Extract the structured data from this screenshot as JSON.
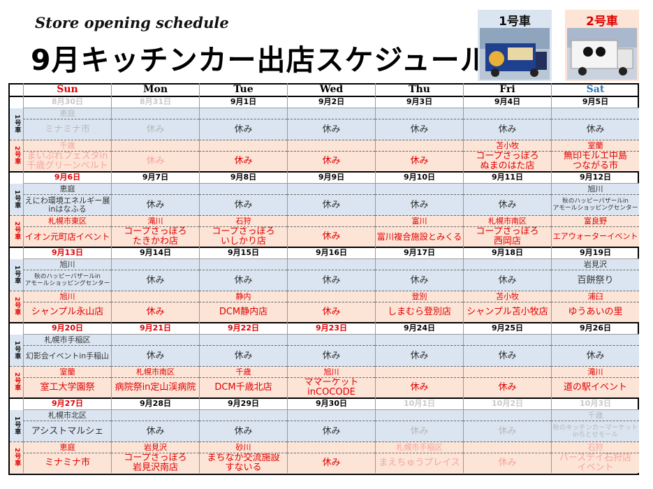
{
  "header": {
    "subtitle": "Store opening schedule",
    "title": "9月キッチンカー出店スケジュール",
    "car1_label": "1号車",
    "car2_label": "2号車"
  },
  "calendar": {
    "days": [
      "Sun",
      "Mon",
      "Tue",
      "Wed",
      "Thu",
      "Fri",
      "Sat"
    ],
    "weeks": [
      {
        "dates": [
          "8月30日",
          "8月31日",
          "9月1日",
          "9月2日",
          "9月3日",
          "9月4日",
          "9月5日"
        ],
        "car1_areas": [
          "恵庭",
          null,
          null,
          null,
          null,
          null,
          null
        ],
        "car1_events": [
          "ミナミナ市",
          "休み",
          "休み",
          "休み",
          "休み",
          "休み",
          "休み"
        ],
        "car2_areas": [
          "千歳",
          null,
          null,
          null,
          null,
          "苫小牧",
          "室蘭"
        ],
        "car2_events": [
          "まいぷれフェスタin\n千歳グリーンベルト",
          "休み",
          "休み",
          "休み",
          "休み",
          "コープさっぽろ\nぬまのはた店",
          "無印モルエ中島\nつながる市"
        ]
      },
      {
        "dates": [
          "9月6日",
          "9月7日",
          "9月8日",
          "9月9日",
          "9月10日",
          "9月11日",
          "9月12日"
        ],
        "car1_areas": [
          "恵庭",
          null,
          null,
          null,
          null,
          null,
          "旭川"
        ],
        "car1_events": [
          "えにわ環境エネルギー展\ninはなふる",
          "休み",
          "休み",
          "休み",
          "休み",
          "休み",
          "秋のハッピーバザールin\nアモールショッピングセンター"
        ],
        "car2_areas": [
          "札幌市東区",
          "滝川",
          "石狩",
          null,
          "富川",
          "札幌市南区",
          "富良野"
        ],
        "car2_events": [
          "イオン元町店イベント",
          "コープさっぽろ\nたきかわ店",
          "コープさっぽろ\nいしかり店",
          "休み",
          "富川複合施設とみくる",
          "コープさっぽろ\n西岡店",
          "エアウォーターイベント"
        ]
      },
      {
        "dates": [
          "9月13日",
          "9月14日",
          "9月15日",
          "9月16日",
          "9月17日",
          "9月18日",
          "9月19日"
        ],
        "car1_areas": [
          "旭川",
          null,
          null,
          null,
          null,
          null,
          "岩見沢"
        ],
        "car1_events": [
          "秋のハッピーバザールin\nアモールショッピングセンター",
          "休み",
          "休み",
          "休み",
          "休み",
          "休み",
          "百餅祭り"
        ],
        "car2_areas": [
          "旭川",
          null,
          "静内",
          null,
          "登別",
          "苫小牧",
          "浦臼"
        ],
        "car2_events": [
          "シャンプル永山店",
          "休み",
          "DCM静内店",
          "休み",
          "しまむら登別店",
          "シャンプル苫小牧店",
          "ゆうあいの里"
        ]
      },
      {
        "dates": [
          "9月20日",
          "9月21日",
          "9月22日",
          "9月23日",
          "9月24日",
          "9月25日",
          "9月26日"
        ],
        "car1_areas": [
          "札幌市手稲区",
          null,
          null,
          null,
          null,
          null,
          null
        ],
        "car1_events": [
          "幻影会イベントin手稲山",
          "休み",
          "休み",
          "休み",
          "休み",
          "休み",
          "休み"
        ],
        "car2_areas": [
          "室蘭",
          "札幌市南区",
          "千歳",
          "旭川",
          null,
          null,
          "滝川"
        ],
        "car2_events": [
          "室工大学園祭",
          "病院祭in定山渓病院",
          "DCM千歳北店",
          "ママーケット\ninCOCODE",
          "休み",
          "休み",
          "道の駅イベント"
        ]
      },
      {
        "dates": [
          "9月27日",
          "9月28日",
          "9月29日",
          "9月30日",
          "10月1日",
          "10月2日",
          "10月3日"
        ],
        "car1_areas": [
          "札幌市北区",
          null,
          null,
          null,
          null,
          null,
          "千歳"
        ],
        "car1_events": [
          "アシストマルシェ",
          "休み",
          "休み",
          "休み",
          "休み",
          "休み",
          "秋のキッチンカーマーケット\ninちとせモール"
        ],
        "car2_areas": [
          "恵庭",
          "岩見沢",
          "砂川",
          null,
          "札幌市手稲区",
          null,
          "石狩"
        ],
        "car2_events": [
          "ミナミナ市",
          "コープさっぽろ\n岩見沢南店",
          "まちなか交流施設\nすないる",
          "休み",
          "まえちゅうプレイス",
          "休み",
          "バースデイ石狩店\nイベント"
        ]
      }
    ]
  }
}
